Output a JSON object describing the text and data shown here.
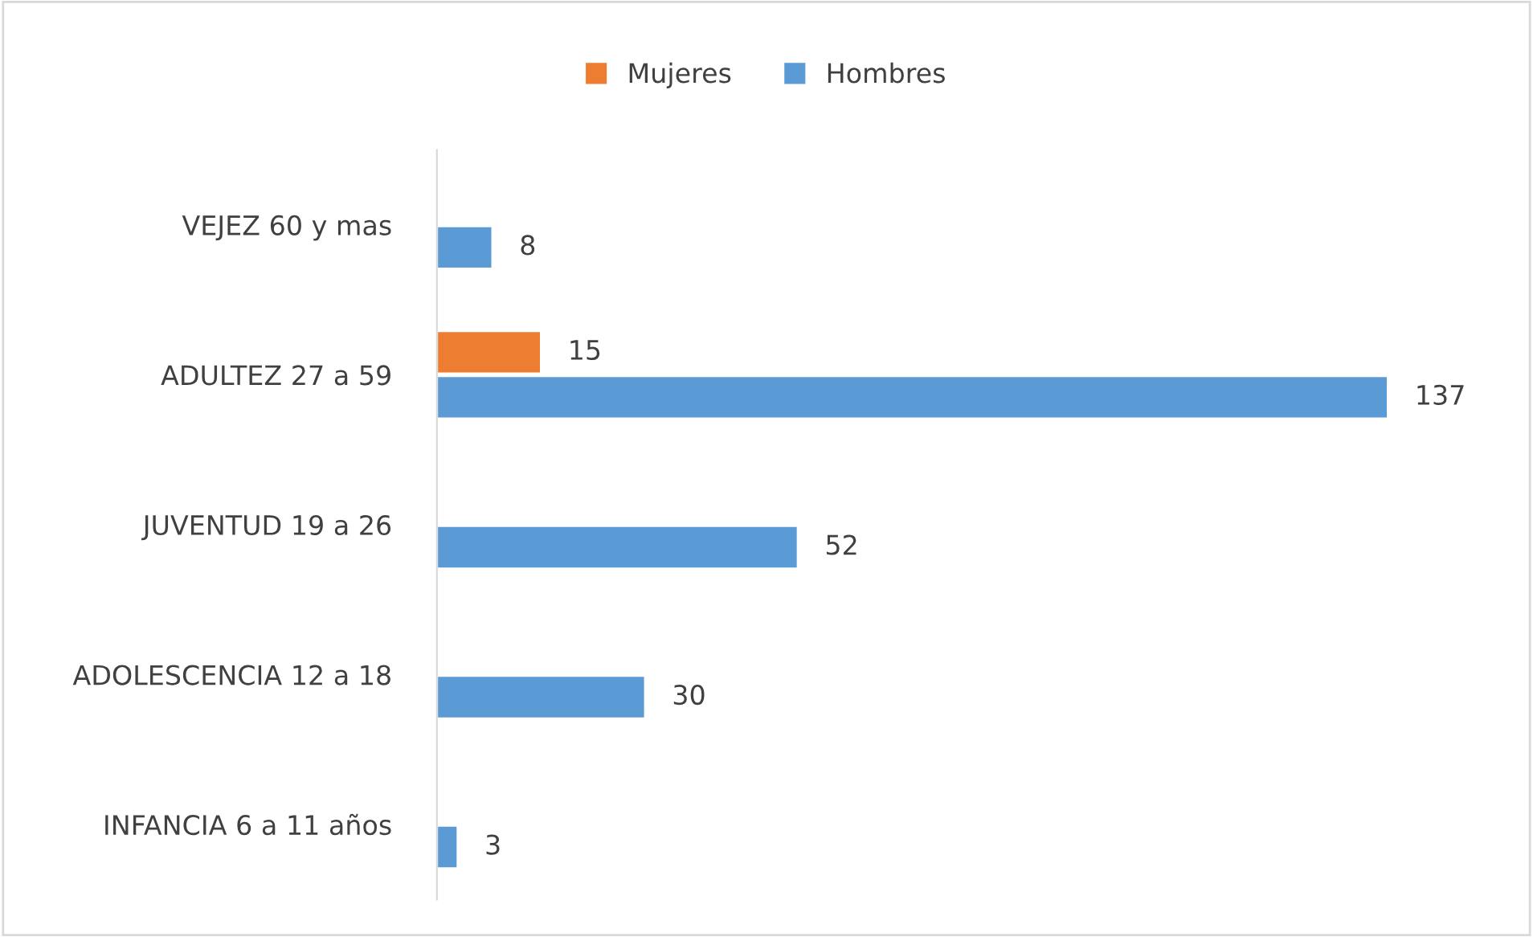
{
  "chart_data": {
    "type": "bar",
    "orientation": "horizontal",
    "categories": [
      "VEJEZ 60 y mas",
      "ADULTEZ 27 a 59",
      "JUVENTUD 19 a 26",
      "ADOLESCENCIA 12 a 18",
      "INFANCIA 6 a 11 años"
    ],
    "series": [
      {
        "name": "Mujeres",
        "color": "#ed7d31",
        "values": [
          null,
          15,
          null,
          null,
          null
        ]
      },
      {
        "name": "Hombres",
        "color": "#5b9bd5",
        "values": [
          8,
          137,
          52,
          30,
          3
        ]
      }
    ],
    "data_labels": true,
    "legend": "top",
    "grid": false
  }
}
